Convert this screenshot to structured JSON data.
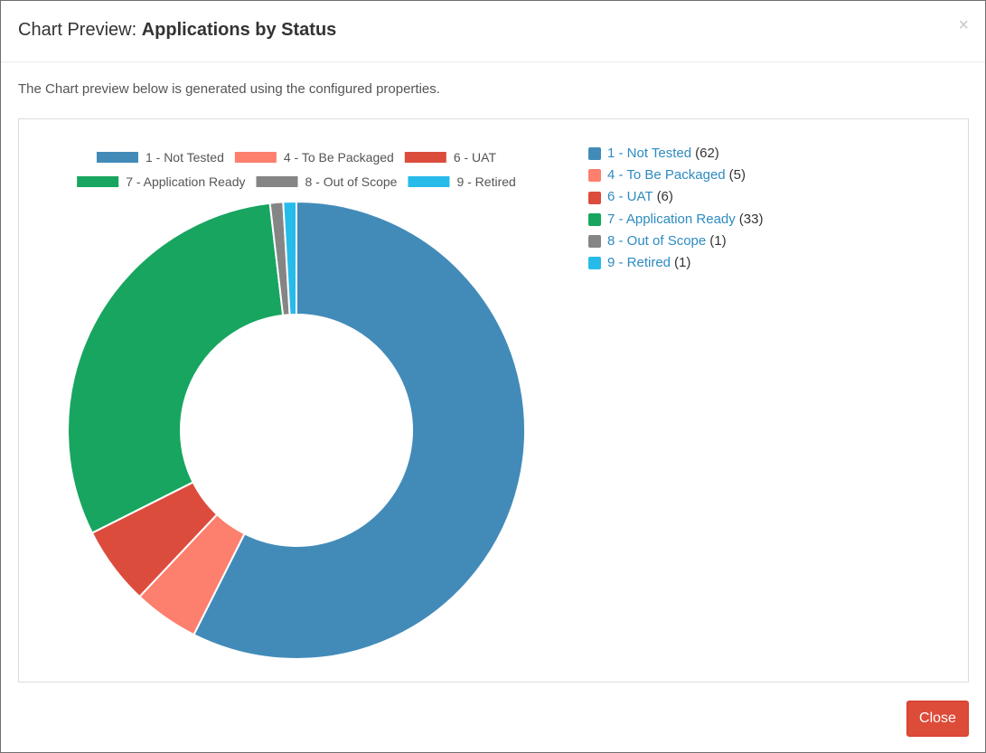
{
  "dialog": {
    "title_prefix": "Chart Preview:",
    "title_name": "Applications by Status",
    "close_icon": "×",
    "description": "The Chart preview below is generated using the configured properties.",
    "close_label": "Close"
  },
  "colors": {
    "accent_link": "#2e8bc0",
    "close_button": "#dd4b39"
  },
  "chart_data": {
    "type": "pie",
    "variant": "doughnut",
    "legend_position": "top",
    "labels": [
      "1 - Not Tested",
      "4 - To Be Packaged",
      "6 - UAT",
      "7 - Application Ready",
      "8 - Out of Scope",
      "9 - Retired"
    ],
    "values": [
      62,
      5,
      6,
      33,
      1,
      1
    ],
    "colors": [
      "#428bb9",
      "#fd7f6e",
      "#dc4c3d",
      "#17a55f",
      "#858585",
      "#27bbea"
    ]
  },
  "side_legend": [
    {
      "label": "1 - Not Tested",
      "count": "(62)",
      "color": "#428bb9"
    },
    {
      "label": "4 - To Be Packaged",
      "count": "(5)",
      "color": "#fd7f6e"
    },
    {
      "label": "6 - UAT",
      "count": "(6)",
      "color": "#dc4c3d"
    },
    {
      "label": "7 - Application Ready",
      "count": "(33)",
      "color": "#17a55f"
    },
    {
      "label": "8 - Out of Scope",
      "count": "(1)",
      "color": "#858585"
    },
    {
      "label": "9 - Retired",
      "count": "(1)",
      "color": "#27bbea"
    }
  ]
}
